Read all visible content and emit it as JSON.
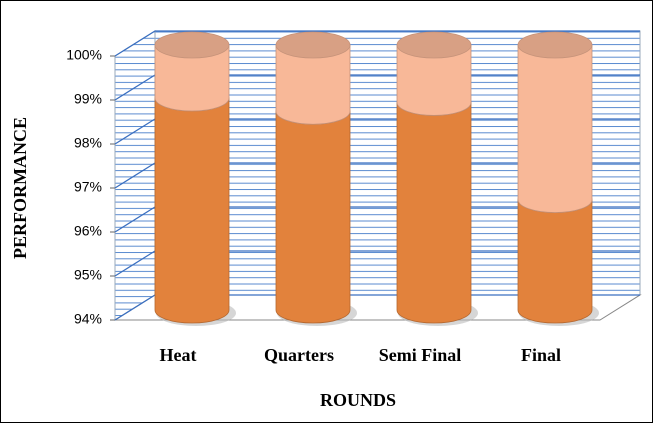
{
  "chart_data": {
    "type": "bar3d_stacked",
    "x_label": "ROUNDS",
    "y_label": "PERFORMANCE",
    "categories": [
      "Heat",
      "Quarters",
      "Semi Final",
      "Final"
    ],
    "series": [
      {
        "color": "#e2823c",
        "values": [
          98.8,
          98.5,
          98.7,
          96.5
        ]
      },
      {
        "color": "#f8b898",
        "values": [
          1.2,
          1.5,
          1.3,
          3.5
        ]
      }
    ],
    "ylim": [
      94,
      100
    ],
    "yticks": [
      {
        "value": 94,
        "label": "94%"
      },
      {
        "value": 95,
        "label": "95%"
      },
      {
        "value": 96,
        "label": "96%"
      },
      {
        "value": 97,
        "label": "97%"
      },
      {
        "value": 98,
        "label": "98%"
      },
      {
        "value": 99,
        "label": "99%"
      },
      {
        "value": 100,
        "label": "100%"
      }
    ],
    "grid": true
  }
}
